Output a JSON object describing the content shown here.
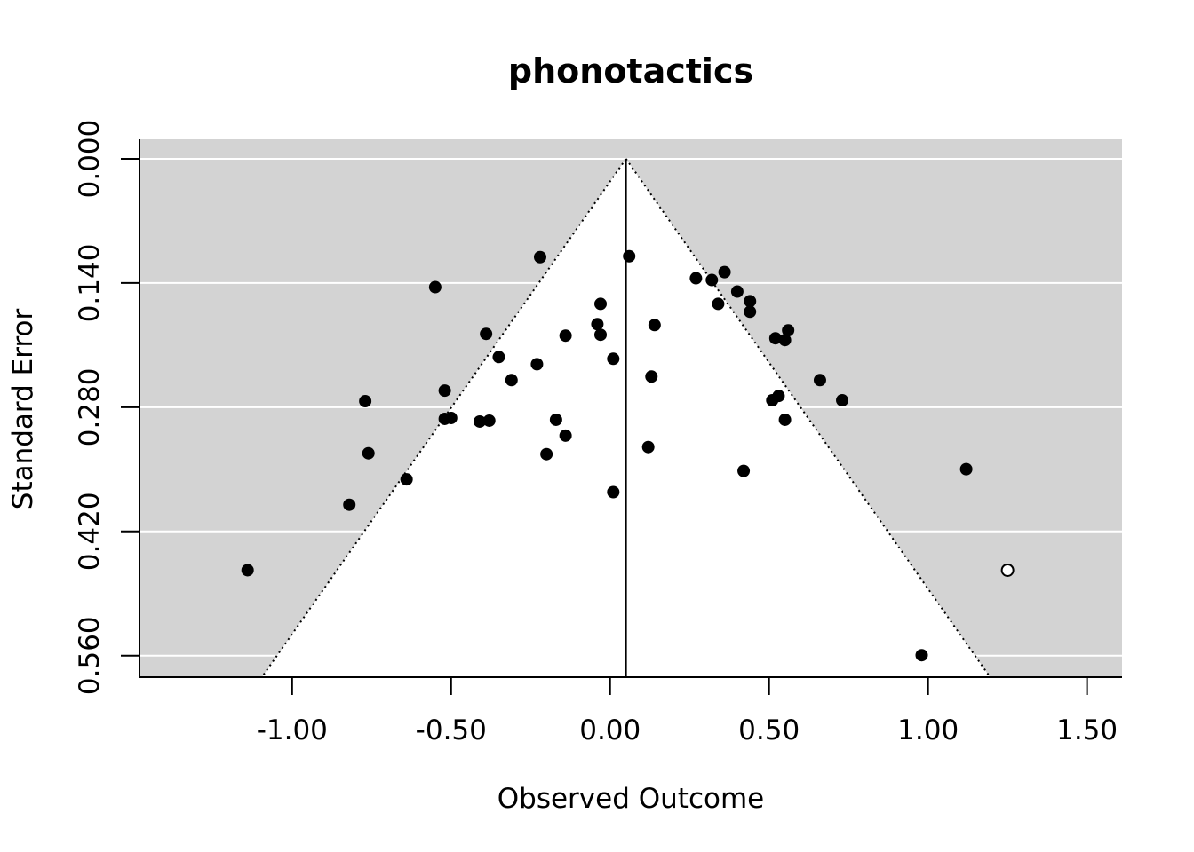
{
  "chart_data": {
    "type": "scatter",
    "title": "phonotactics",
    "xlabel": "Observed Outcome",
    "ylabel": "Standard Error",
    "xlim": [
      -1.48,
      1.61
    ],
    "ylim": [
      0.0,
      0.5843
    ],
    "y_reversed": true,
    "x_ticks": [
      -1.0,
      -0.5,
      0.0,
      0.5,
      1.0,
      1.5
    ],
    "x_tick_labels": [
      "-1.00",
      "-0.50",
      "0.00",
      "0.50",
      "1.00",
      "1.50"
    ],
    "y_ticks": [
      0.0,
      0.14,
      0.28,
      0.42,
      0.56
    ],
    "y_tick_labels": [
      "0.000",
      "0.140",
      "0.280",
      "0.420",
      "0.560"
    ],
    "grid": "horizontal",
    "center_line": 0.05,
    "funnel_slope": 1.96,
    "points": [
      {
        "x": -1.14,
        "y": 0.4637,
        "filled": true
      },
      {
        "x": -0.82,
        "y": 0.3899,
        "filled": true
      },
      {
        "x": -0.77,
        "y": 0.2732,
        "filled": true
      },
      {
        "x": -0.76,
        "y": 0.3319,
        "filled": true
      },
      {
        "x": -0.64,
        "y": 0.3613,
        "filled": true
      },
      {
        "x": -0.55,
        "y": 0.1446,
        "filled": true
      },
      {
        "x": -0.52,
        "y": 0.2613,
        "filled": true
      },
      {
        "x": -0.52,
        "y": 0.2931,
        "filled": true
      },
      {
        "x": -0.5,
        "y": 0.2921,
        "filled": true
      },
      {
        "x": -0.41,
        "y": 0.2961,
        "filled": true
      },
      {
        "x": -0.38,
        "y": 0.2951,
        "filled": true
      },
      {
        "x": -0.39,
        "y": 0.1973,
        "filled": true
      },
      {
        "x": -0.35,
        "y": 0.2234,
        "filled": true
      },
      {
        "x": -0.31,
        "y": 0.2494,
        "filled": true
      },
      {
        "x": -0.23,
        "y": 0.2315,
        "filled": true
      },
      {
        "x": -0.22,
        "y": 0.1108,
        "filled": true
      },
      {
        "x": -0.2,
        "y": 0.3329,
        "filled": true
      },
      {
        "x": -0.17,
        "y": 0.2941,
        "filled": true
      },
      {
        "x": -0.14,
        "y": 0.312,
        "filled": true
      },
      {
        "x": -0.14,
        "y": 0.1993,
        "filled": true
      },
      {
        "x": -0.04,
        "y": 0.1864,
        "filled": true
      },
      {
        "x": -0.03,
        "y": 0.1635,
        "filled": true
      },
      {
        "x": -0.03,
        "y": 0.1983,
        "filled": true
      },
      {
        "x": 0.01,
        "y": 0.2254,
        "filled": true
      },
      {
        "x": 0.01,
        "y": 0.3757,
        "filled": true
      },
      {
        "x": 0.06,
        "y": 0.1098,
        "filled": true
      },
      {
        "x": 0.12,
        "y": 0.3249,
        "filled": true
      },
      {
        "x": 0.13,
        "y": 0.2454,
        "filled": true
      },
      {
        "x": 0.14,
        "y": 0.1874,
        "filled": true
      },
      {
        "x": 0.27,
        "y": 0.1346,
        "filled": true
      },
      {
        "x": 0.32,
        "y": 0.1366,
        "filled": true
      },
      {
        "x": 0.34,
        "y": 0.1635,
        "filled": true
      },
      {
        "x": 0.36,
        "y": 0.1277,
        "filled": true
      },
      {
        "x": 0.4,
        "y": 0.1496,
        "filled": true
      },
      {
        "x": 0.44,
        "y": 0.1605,
        "filled": true
      },
      {
        "x": 0.44,
        "y": 0.1724,
        "filled": true
      },
      {
        "x": 0.42,
        "y": 0.3518,
        "filled": true
      },
      {
        "x": 0.51,
        "y": 0.2722,
        "filled": true
      },
      {
        "x": 0.52,
        "y": 0.2023,
        "filled": true
      },
      {
        "x": 0.53,
        "y": 0.2673,
        "filled": true
      },
      {
        "x": 0.55,
        "y": 0.2043,
        "filled": true
      },
      {
        "x": 0.55,
        "y": 0.2941,
        "filled": true
      },
      {
        "x": 0.56,
        "y": 0.1933,
        "filled": true
      },
      {
        "x": 0.66,
        "y": 0.2494,
        "filled": true
      },
      {
        "x": 0.73,
        "y": 0.2722,
        "filled": true
      },
      {
        "x": 0.98,
        "y": 0.5595,
        "filled": true
      },
      {
        "x": 1.12,
        "y": 0.3498,
        "filled": true
      },
      {
        "x": 1.25,
        "y": 0.4637,
        "filled": false
      }
    ]
  }
}
